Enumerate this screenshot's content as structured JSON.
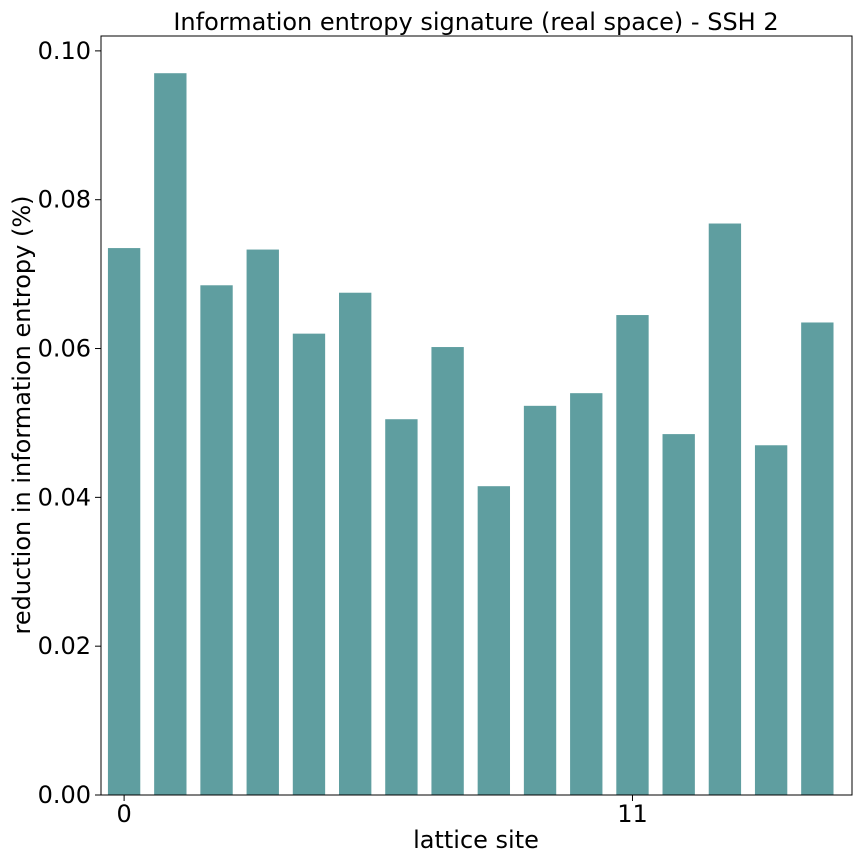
{
  "chart_data": {
    "type": "bar",
    "title": "Information entropy signature (real space) - SSH 2",
    "xlabel": "lattice site",
    "ylabel": "reduction in information entropy (%)",
    "categories": [
      "0",
      "1",
      "2",
      "3",
      "4",
      "5",
      "6",
      "7",
      "8",
      "9",
      "10",
      "11",
      "12",
      "13",
      "14",
      "15"
    ],
    "values": [
      0.0735,
      0.097,
      0.0685,
      0.0733,
      0.062,
      0.0675,
      0.0505,
      0.0602,
      0.0415,
      0.0523,
      0.054,
      0.0645,
      0.0485,
      0.0768,
      0.047,
      0.0635
    ],
    "xticks": [
      {
        "site": 0,
        "label": "0"
      },
      {
        "site": 11,
        "label": "11"
      }
    ],
    "yticks": [
      {
        "value": 0.0,
        "label": "0.00"
      },
      {
        "value": 0.02,
        "label": "0.02"
      },
      {
        "value": 0.04,
        "label": "0.04"
      },
      {
        "value": 0.06,
        "label": "0.06"
      },
      {
        "value": 0.08,
        "label": "0.08"
      },
      {
        "value": 0.1,
        "label": "0.10"
      }
    ],
    "ylim": [
      0,
      0.102
    ],
    "xlim": [
      -0.5,
      15.75
    ],
    "bar_color": "#5f9ea0",
    "grid": false
  }
}
